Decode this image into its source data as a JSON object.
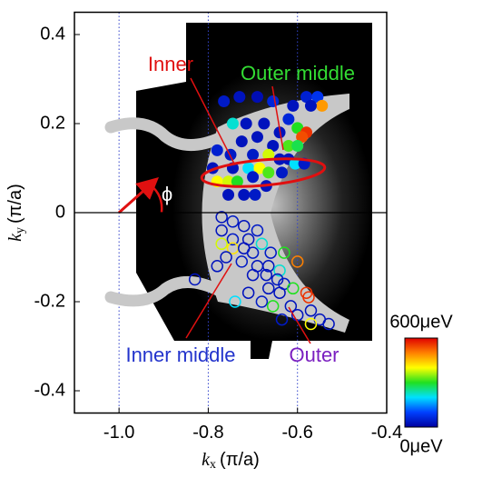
{
  "chart_data": {
    "type": "scatter",
    "xlabel": {
      "symbol": "k",
      "sub": "x",
      "unit": "(π/a)"
    },
    "ylabel": {
      "symbol": "k",
      "sub": "y",
      "unit": "(π/a)"
    },
    "xlim": [
      -1.1,
      -0.4
    ],
    "ylim": [
      -0.45,
      0.45
    ],
    "xticks": [
      {
        "value": -1.0,
        "label": "-1.0"
      },
      {
        "value": -0.8,
        "label": "-0.8"
      },
      {
        "value": -0.6,
        "label": "-0.6"
      },
      {
        "value": -0.4,
        "label": "-0.4"
      }
    ],
    "yticks": [
      0.4,
      0.2,
      0,
      -0.2,
      -0.4
    ],
    "xgrid": true,
    "grid_color": "#3344cc",
    "colormap": [
      "#0000a0",
      "#0040ff",
      "#00e0ff",
      "#20e020",
      "#ffff00",
      "#ff8000",
      "#e00000"
    ],
    "clim": [
      0,
      600
    ],
    "colorbar_ticks": [
      {
        "value": 600,
        "label": "600μeV"
      },
      {
        "value": 0,
        "label": "0μeV"
      }
    ],
    "annotations": [
      {
        "text": "Inner",
        "color": "#e01010"
      },
      {
        "text": "Outer middle",
        "color": "#33dd33"
      },
      {
        "text": "Inner middle",
        "color": "#2233cc"
      },
      {
        "text": "Outer",
        "color": "#7a1fc0"
      },
      {
        "text": "ϕ",
        "color": "#ffffff"
      }
    ],
    "series": [
      {
        "marker": "filled",
        "x": [
          -0.73,
          -0.765,
          -0.69,
          -0.655,
          -0.58,
          -0.555,
          -0.545,
          -0.57,
          -0.61,
          -0.745,
          -0.715,
          -0.675,
          -0.62,
          -0.6,
          -0.58,
          -0.59,
          -0.64,
          -0.69,
          -0.655,
          -0.62,
          -0.6,
          -0.78,
          -0.725,
          -0.75,
          -0.7,
          -0.665,
          -0.64,
          -0.62,
          -0.605,
          -0.585,
          -0.79,
          -0.745,
          -0.71,
          -0.685,
          -0.665,
          -0.635,
          -0.78,
          -0.755,
          -0.735,
          -0.7,
          -0.67,
          -0.755,
          -0.72,
          -0.695
        ],
        "y": [
          0.26,
          0.25,
          0.26,
          0.25,
          0.26,
          0.26,
          0.24,
          0.24,
          0.24,
          0.2,
          0.2,
          0.2,
          0.21,
          0.19,
          0.18,
          0.17,
          0.18,
          0.17,
          0.15,
          0.15,
          0.15,
          0.14,
          0.16,
          0.13,
          0.13,
          0.13,
          0.12,
          0.12,
          0.11,
          0.11,
          0.1,
          0.1,
          0.1,
          0.1,
          0.09,
          0.09,
          0.07,
          0.07,
          0.07,
          0.08,
          0.06,
          0.04,
          0.04,
          0.04
        ],
        "values": [
          30,
          40,
          20,
          60,
          50,
          80,
          480,
          30,
          30,
          220,
          30,
          30,
          60,
          300,
          560,
          540,
          30,
          30,
          30,
          320,
          280,
          50,
          30,
          40,
          40,
          380,
          30,
          30,
          200,
          40,
          30,
          30,
          200,
          400,
          320,
          40,
          400,
          380,
          300,
          40,
          30,
          30,
          30,
          40
        ]
      },
      {
        "marker": "open",
        "x": [
          -0.77,
          -0.745,
          -0.72,
          -0.77,
          -0.745,
          -0.71,
          -0.69,
          -0.68,
          -0.77,
          -0.745,
          -0.72,
          -0.7,
          -0.66,
          -0.63,
          -0.6,
          -0.76,
          -0.725,
          -0.69,
          -0.665,
          -0.64,
          -0.78,
          -0.7,
          -0.67,
          -0.645,
          -0.63,
          -0.665,
          -0.64,
          -0.61,
          -0.58,
          -0.575,
          -0.71,
          -0.74,
          -0.83,
          -0.68,
          -0.655,
          -0.615,
          -0.6,
          -0.57,
          -0.55,
          -0.53,
          -0.57,
          -0.635
        ],
        "y": [
          -0.01,
          -0.02,
          -0.03,
          -0.04,
          -0.06,
          -0.06,
          -0.04,
          -0.07,
          -0.07,
          -0.08,
          -0.08,
          -0.09,
          -0.09,
          -0.09,
          -0.11,
          -0.1,
          -0.11,
          -0.12,
          -0.12,
          -0.13,
          -0.12,
          -0.14,
          -0.14,
          -0.15,
          -0.16,
          -0.17,
          -0.18,
          -0.17,
          -0.18,
          -0.19,
          -0.18,
          -0.2,
          -0.15,
          -0.2,
          -0.21,
          -0.21,
          -0.23,
          -0.22,
          -0.24,
          -0.25,
          -0.25,
          -0.24
        ],
        "values": [
          30,
          40,
          30,
          30,
          40,
          30,
          40,
          220,
          380,
          420,
          30,
          40,
          40,
          300,
          500,
          30,
          40,
          30,
          30,
          220,
          30,
          30,
          30,
          30,
          40,
          30,
          30,
          300,
          560,
          560,
          30,
          200,
          30,
          40,
          300,
          30,
          30,
          30,
          30,
          30,
          400,
          40
        ]
      }
    ]
  }
}
